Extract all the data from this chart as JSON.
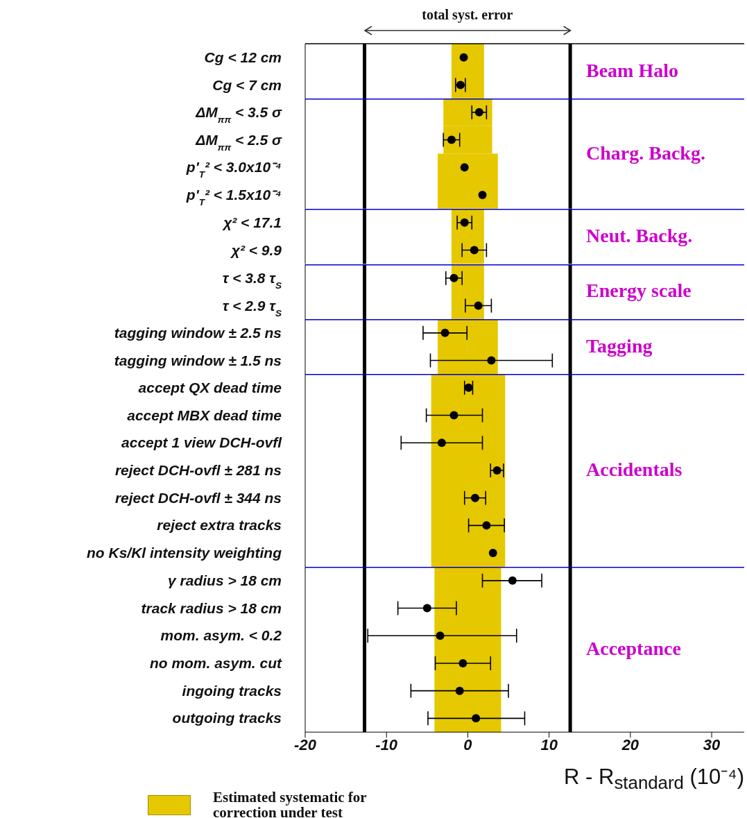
{
  "chart_data": [
    {
      "type": "scatter",
      "orientation": "horizontal",
      "title": "total syst. error",
      "categories": [
        "Cg < 12 cm",
        "Cg < 7 cm"
      ],
      "series": [
        {
          "color": "#000000",
          "values": [
            -0.5,
            -0.9
          ],
          "errors": [
            null,
            0.6
          ]
        }
      ],
      "xlim": [
        -20,
        34
      ],
      "bands": [
        {
          "axis": "x",
          "from": -2,
          "to": 2,
          "color": "#e6c800"
        }
      ],
      "ref_lines": [
        {
          "axis": "x",
          "value": -12.7,
          "color": "#000000"
        },
        {
          "axis": "x",
          "value": 12.6,
          "color": "#000000"
        }
      ],
      "annotations": [
        "Beam Halo"
      ],
      "marker": "circle",
      "tick_labels": "y",
      "grid": false
    },
    {
      "type": "bar",
      "orientation": "horizontal",
      "categories": [
        "ΔM$_{ππ}$ < 3.5 σ",
        "ΔM$_{ππ}$ < 2.5 σ",
        "p'$_{T}$² < 3.0x10⁻⁴",
        "p'$_{T}$² < 1.5x10⁻⁴"
      ],
      "series": [
        {
          "color": "#e6c800",
          "base": [
            -3,
            -3,
            -3.7,
            -3.7
          ],
          "values": [
            6,
            6,
            7.4,
            7.4
          ]
        },
        {
          "type": "scatter",
          "color": "#000000",
          "values": [
            1.4,
            -2.0,
            -0.4,
            1.8
          ],
          "errors": [
            0.9,
            1.0,
            null,
            null
          ]
        }
      ],
      "xlim": [
        -20,
        34
      ],
      "ref_lines": [
        {
          "axis": "x",
          "value": -12.7,
          "color": "#000000"
        },
        {
          "axis": "x",
          "value": 12.6,
          "color": "#000000"
        }
      ],
      "annotations": [
        "Charg. Backg."
      ],
      "marker": "circle",
      "tick_labels": "y",
      "grid": false
    },
    {
      "type": "scatter",
      "orientation": "horizontal",
      "categories": [
        "χ² < 17.1",
        "χ² < 9.9"
      ],
      "series": [
        {
          "color": "#000000",
          "values": [
            -0.4,
            0.8
          ],
          "errors": [
            0.9,
            1.5
          ]
        }
      ],
      "xlim": [
        -20,
        34
      ],
      "bands": [
        {
          "axis": "x",
          "from": -2,
          "to": 2,
          "color": "#e6c800"
        }
      ],
      "ref_lines": [
        {
          "axis": "x",
          "value": -12.7,
          "color": "#000000"
        },
        {
          "axis": "x",
          "value": 12.6,
          "color": "#000000"
        }
      ],
      "annotations": [
        "Neut. Backg."
      ],
      "marker": "circle",
      "tick_labels": "y",
      "grid": false
    },
    {
      "type": "scatter",
      "orientation": "horizontal",
      "categories": [
        "τ < 3.8 τ$_{S}$",
        "τ < 2.9 τ$_{S}$"
      ],
      "series": [
        {
          "color": "#000000",
          "values": [
            -1.7,
            1.3
          ],
          "errors": [
            1.0,
            1.6
          ]
        }
      ],
      "xlim": [
        -20,
        34
      ],
      "bands": [
        {
          "axis": "x",
          "from": -2,
          "to": 2,
          "color": "#e6c800"
        }
      ],
      "ref_lines": [
        {
          "axis": "x",
          "value": -12.7,
          "color": "#000000"
        },
        {
          "axis": "x",
          "value": 12.6,
          "color": "#000000"
        }
      ],
      "annotations": [
        "Energy scale"
      ],
      "marker": "circle",
      "tick_labels": "y",
      "grid": false
    },
    {
      "type": "scatter",
      "orientation": "horizontal",
      "categories": [
        "tagging window ± 2.5 ns",
        "tagging window ± 1.5 ns"
      ],
      "series": [
        {
          "color": "#000000",
          "values": [
            -2.8,
            2.9
          ],
          "errors": [
            2.7,
            [
              -4.6,
              10.4
            ]
          ]
        }
      ],
      "xlim": [
        -20,
        34
      ],
      "bands": [
        {
          "axis": "x",
          "from": -3.7,
          "to": 3.7,
          "color": "#e6c800"
        }
      ],
      "ref_lines": [
        {
          "axis": "x",
          "value": -12.7,
          "color": "#000000"
        },
        {
          "axis": "x",
          "value": 12.6,
          "color": "#000000"
        }
      ],
      "annotations": [
        "Tagging"
      ],
      "marker": "circle",
      "tick_labels": "y",
      "grid": false
    },
    {
      "type": "scatter",
      "orientation": "horizontal",
      "categories": [
        "accept QX dead time",
        "accept MBX dead time",
        "accept 1 view DCH-ovfl",
        "reject DCH-ovfl ± 281 ns",
        "reject DCH-ovfl ± 344 ns",
        "reject extra tracks",
        "no Ks/Kl intensity weighting"
      ],
      "series": [
        {
          "color": "#000000",
          "values": [
            0.1,
            -1.7,
            -3.2,
            3.6,
            0.9,
            2.3,
            3.1
          ],
          "errors": [
            0.5,
            [
              -5.1,
              1.8
            ],
            [
              -8.2,
              1.8
            ],
            0.8,
            1.3,
            2.2,
            null
          ]
        }
      ],
      "xlim": [
        -20,
        34
      ],
      "bands": [
        {
          "axis": "x",
          "from": -4.5,
          "to": 4.6,
          "color": "#e6c800"
        }
      ],
      "ref_lines": [
        {
          "axis": "x",
          "value": -12.7,
          "color": "#000000"
        },
        {
          "axis": "x",
          "value": 12.6,
          "color": "#000000"
        }
      ],
      "annotations": [
        "Accidentals"
      ],
      "marker": "circle",
      "tick_labels": "y",
      "grid": false
    },
    {
      "type": "scatter",
      "orientation": "horizontal",
      "categories": [
        "γ radius > 18 cm",
        "track radius > 18 cm",
        "mom. asym. < 0.2",
        "no mom. asym. cut",
        "ingoing tracks",
        "outgoing tracks"
      ],
      "series": [
        {
          "color": "#000000",
          "values": [
            5.5,
            -5.0,
            -3.4,
            -0.6,
            -1.0,
            1.0
          ],
          "errors": [
            [
              1.8,
              9.1
            ],
            [
              -8.6,
              -1.4
            ],
            [
              -12.3,
              6.0
            ],
            [
              -4.0,
              2.8
            ],
            [
              -7.0,
              5.0
            ],
            [
              -4.9,
              7.0
            ]
          ]
        }
      ],
      "xlim": [
        -20,
        34
      ],
      "xticks": [
        -20,
        -10,
        0,
        10,
        20,
        30
      ],
      "xlabel": "R - R$_{standard}$ (10⁻⁴)",
      "bands": [
        {
          "axis": "x",
          "from": -4.1,
          "to": 4.1,
          "color": "#e6c800",
          "label": "Estimated systematic for correction under test"
        }
      ],
      "ref_lines": [
        {
          "axis": "x",
          "value": -12.7,
          "color": "#000000"
        },
        {
          "axis": "x",
          "value": 12.6,
          "color": "#000000"
        }
      ],
      "annotations": [
        "Acceptance"
      ],
      "marker": "circle",
      "legend": "bottom left",
      "grid": false
    }
  ]
}
